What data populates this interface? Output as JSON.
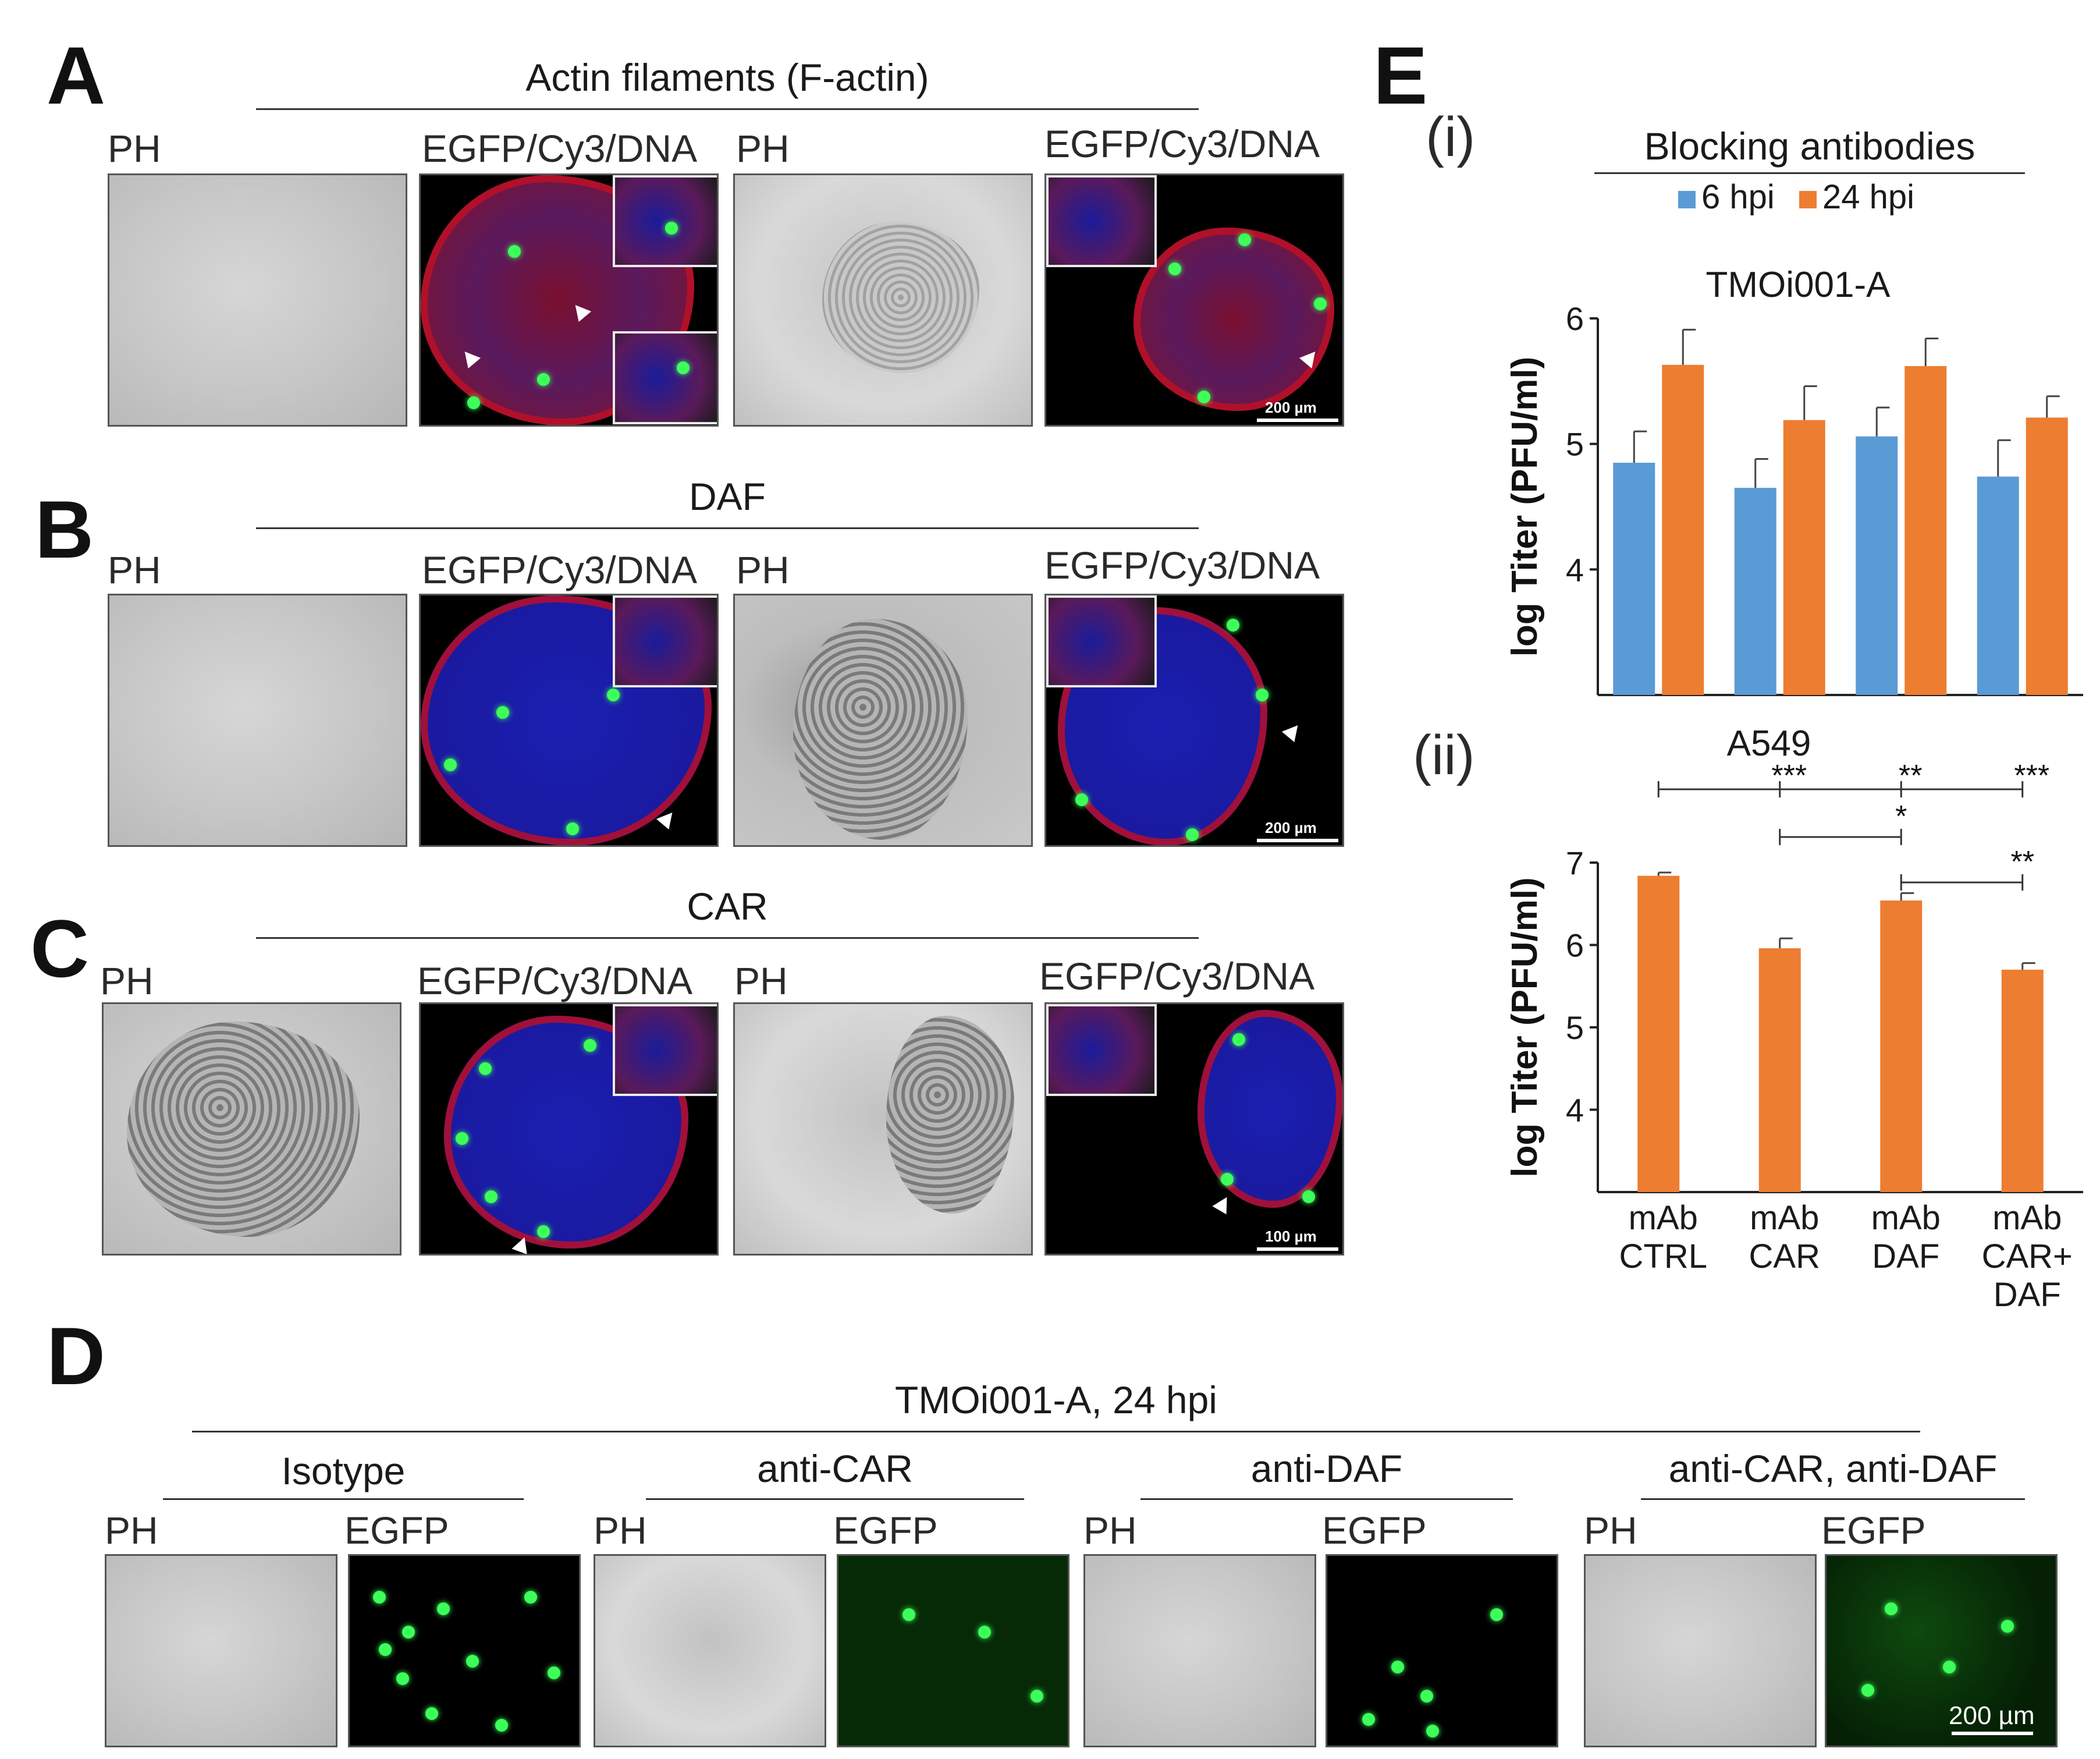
{
  "panels": {
    "A": {
      "letter": "A",
      "title": "Actin filaments (F-actin)",
      "ph": "PH",
      "fluor": "EGFP/Cy3/DNA",
      "scale": "200 µm"
    },
    "B": {
      "letter": "B",
      "title": "DAF",
      "ph": "PH",
      "fluor": "EGFP/Cy3/DNA",
      "scale": "200 µm"
    },
    "C": {
      "letter": "C",
      "title": "CAR",
      "ph": "PH",
      "fluor": "EGFP/Cy3/DNA",
      "scale": "100 µm"
    },
    "D": {
      "letter": "D",
      "title": "TMOi001-A, 24 hpi",
      "groups": [
        "Isotype",
        "anti-CAR",
        "anti-DAF",
        "anti-CAR, anti-DAF"
      ],
      "ph": "PH",
      "egfp": "EGFP",
      "scale": "200 µm"
    },
    "E": {
      "letter": "E",
      "sub_i": "(i)",
      "sub_ii": "(ii)",
      "legend_title": "Blocking antibodies"
    }
  },
  "colors": {
    "series_6hpi": "#5b9bd5",
    "series_24hpi": "#ed7d31",
    "egfp": "#3cff5a"
  },
  "chart_data": [
    {
      "type": "bar",
      "title": "TMOi001-A",
      "ylabel": "log Titer (PFU/ml)",
      "ylim": [
        3.0,
        6.0
      ],
      "yticks": [
        4,
        5,
        6
      ],
      "categories": [
        "mAb CTRL",
        "mAb CAR",
        "mAb DAF",
        "mAb CAR+ DAF"
      ],
      "series": [
        {
          "name": "6 hpi",
          "values": [
            4.85,
            4.65,
            5.06,
            4.74
          ],
          "errors": [
            0.25,
            0.23,
            0.23,
            0.29
          ]
        },
        {
          "name": "24 hpi",
          "values": [
            5.63,
            5.19,
            5.62,
            5.21
          ],
          "errors": [
            0.28,
            0.27,
            0.22,
            0.17
          ]
        }
      ],
      "legend_position": "top"
    },
    {
      "type": "bar",
      "title": "A549",
      "ylabel": "log Titer (PFU/ml)",
      "ylim": [
        3.0,
        7.0
      ],
      "yticks": [
        4,
        5,
        6,
        7
      ],
      "categories": [
        "mAb CTRL",
        "mAb CAR",
        "mAb DAF",
        "mAb CAR+ DAF"
      ],
      "category_lines": [
        [
          "mAb",
          "CTRL"
        ],
        [
          "mAb",
          "CAR"
        ],
        [
          "mAb",
          "DAF"
        ],
        [
          "mAb",
          "CAR+",
          "DAF"
        ]
      ],
      "series": [
        {
          "name": "24 hpi",
          "values": [
            6.84,
            5.96,
            6.54,
            5.7
          ],
          "errors": [
            0.04,
            0.12,
            0.09,
            0.08
          ]
        }
      ],
      "significance": [
        {
          "from": 0,
          "to": 3,
          "marks": [
            "***",
            "**",
            "***"
          ]
        },
        {
          "from": 1,
          "to": 2,
          "marks": [
            "*"
          ]
        },
        {
          "from": 2,
          "to": 3,
          "marks": [
            "**"
          ]
        }
      ]
    }
  ]
}
